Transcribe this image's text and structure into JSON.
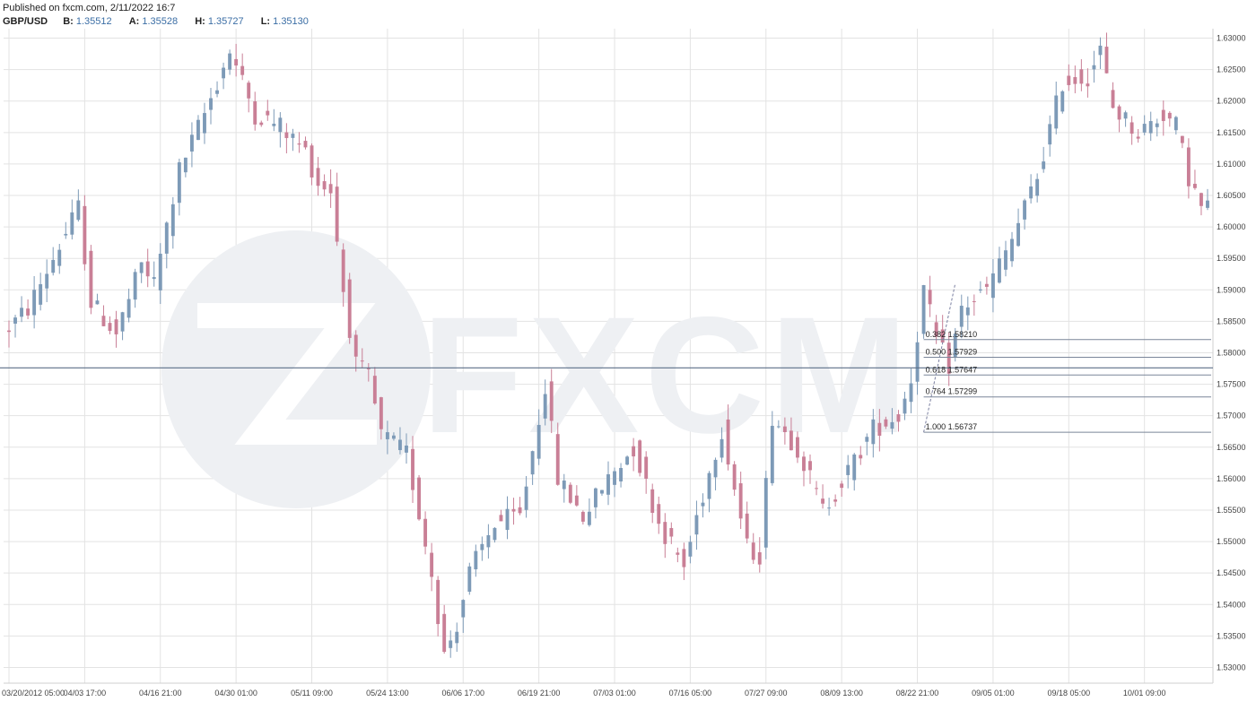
{
  "header": {
    "published": "Published on fxcm.com, 2/11/2022 16:7",
    "symbol": "GBP/USD",
    "bid_label": "B:",
    "bid": "1.35512",
    "ask_label": "A:",
    "ask": "1.35528",
    "high_label": "H:",
    "high": "1.35727",
    "low_label": "L:",
    "low": "1.35130"
  },
  "watermark": "FXCM",
  "colors": {
    "up_candle": "#7d9ab7",
    "down_candle": "#c97f96",
    "grid": "#e3e3e3",
    "horizontal_line": "#5b6f88",
    "fib_line": "#7a8699",
    "watermark": "#eef0f3"
  },
  "chart_data": {
    "type": "candlestick",
    "title": "",
    "xlabel": "",
    "ylabel": "",
    "ylim": [
      1.5275,
      1.6315
    ],
    "y_ticks": [
      "1.63000",
      "1.62500",
      "1.62000",
      "1.61500",
      "1.61000",
      "1.60500",
      "1.60000",
      "1.59500",
      "1.59000",
      "1.58500",
      "1.58000",
      "1.57500",
      "1.57000",
      "1.56500",
      "1.56000",
      "1.55500",
      "1.55000",
      "1.54500",
      "1.54000",
      "1.53500",
      "1.53000"
    ],
    "x_ticks": [
      "03/20/2012 05:00",
      "04/03 17:00",
      "04/16 21:00",
      "04/30 01:00",
      "05/11 09:00",
      "05/24 13:00",
      "06/06 17:00",
      "06/19 21:00",
      "07/03 01:00",
      "07/16 05:00",
      "07/27 09:00",
      "08/09 13:00",
      "08/22 21:00",
      "09/05 01:00",
      "09/18 05:00",
      "10/01 09:00"
    ],
    "x_tick_index": [
      0,
      12,
      24,
      36,
      48,
      60,
      72,
      84,
      96,
      108,
      120,
      132,
      144,
      156,
      168,
      180
    ],
    "price_path": [
      [
        0,
        1.583
      ],
      [
        4,
        1.587
      ],
      [
        8,
        1.595
      ],
      [
        12,
        1.603
      ],
      [
        14,
        1.588
      ],
      [
        18,
        1.583
      ],
      [
        22,
        1.594
      ],
      [
        24,
        1.591
      ],
      [
        28,
        1.609
      ],
      [
        32,
        1.618
      ],
      [
        36,
        1.628
      ],
      [
        40,
        1.618
      ],
      [
        44,
        1.616
      ],
      [
        48,
        1.612
      ],
      [
        50,
        1.607
      ],
      [
        52,
        1.606
      ],
      [
        54,
        1.59
      ],
      [
        56,
        1.578
      ],
      [
        58,
        1.576
      ],
      [
        60,
        1.567
      ],
      [
        64,
        1.564
      ],
      [
        68,
        1.545
      ],
      [
        70,
        1.532
      ],
      [
        72,
        1.537
      ],
      [
        74,
        1.545
      ],
      [
        78,
        1.553
      ],
      [
        82,
        1.554
      ],
      [
        86,
        1.575
      ],
      [
        88,
        1.56
      ],
      [
        92,
        1.554
      ],
      [
        96,
        1.56
      ],
      [
        100,
        1.565
      ],
      [
        104,
        1.553
      ],
      [
        108,
        1.546
      ],
      [
        110,
        1.554
      ],
      [
        114,
        1.568
      ],
      [
        118,
        1.549
      ],
      [
        120,
        1.548
      ],
      [
        122,
        1.57
      ],
      [
        126,
        1.565
      ],
      [
        130,
        1.555
      ],
      [
        134,
        1.561
      ],
      [
        138,
        1.568
      ],
      [
        142,
        1.57
      ],
      [
        144,
        1.576
      ],
      [
        146,
        1.59
      ],
      [
        148,
        1.582
      ],
      [
        150,
        1.578
      ],
      [
        152,
        1.587
      ],
      [
        156,
        1.59
      ],
      [
        160,
        1.598
      ],
      [
        164,
        1.608
      ],
      [
        168,
        1.623
      ],
      [
        172,
        1.624
      ],
      [
        174,
        1.628
      ],
      [
        176,
        1.619
      ],
      [
        180,
        1.615
      ],
      [
        184,
        1.618
      ],
      [
        186,
        1.616
      ],
      [
        188,
        1.608
      ],
      [
        190,
        1.603
      ]
    ],
    "candle_count": 191,
    "horizontal_line": 1.5776,
    "fibonacci": [
      {
        "ratio": "0.382",
        "price": "1.58210",
        "value": 1.5821
      },
      {
        "ratio": "0.500",
        "price": "1.57929",
        "value": 1.57929
      },
      {
        "ratio": "0.618",
        "price": "1.57647",
        "value": 1.57647
      },
      {
        "ratio": "0.764",
        "price": "1.57299",
        "value": 1.57299
      },
      {
        "ratio": "1.000",
        "price": "1.56737",
        "value": 1.56737
      }
    ],
    "fib_start_index": 145,
    "fib_swing": {
      "from_index": 145,
      "from_value": 1.56737,
      "to_index": 150,
      "to_value": 1.591
    },
    "grid": true,
    "legend": "none"
  }
}
